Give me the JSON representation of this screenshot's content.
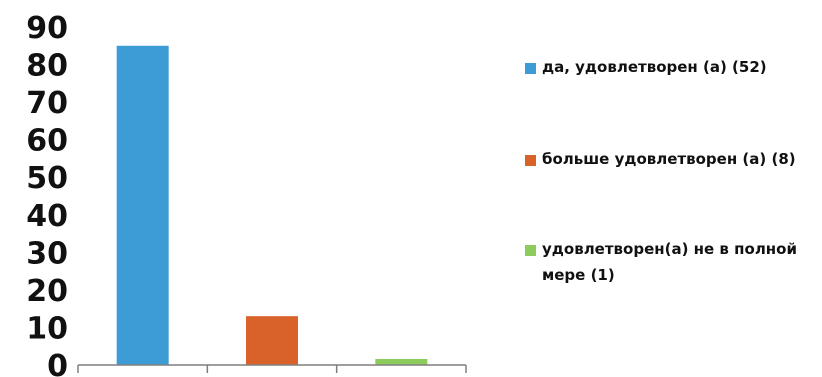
{
  "chart_data": {
    "type": "bar",
    "categories": [
      "да, удовлетворен (а) (52)",
      "больше удовлетворен (а) (8)",
      "удовлетворен(а) не в полной мере (1)"
    ],
    "values": [
      85,
      13,
      1.6
    ],
    "colors": [
      "#3d9bd6",
      "#d9622b",
      "#8ccc5c"
    ],
    "ylim": [
      0,
      90
    ],
    "yticks": [
      "0",
      "10",
      "20",
      "30",
      "40",
      "50",
      "60",
      "70",
      "80",
      "90"
    ],
    "title": "",
    "xlabel": "",
    "ylabel": "",
    "grid": false,
    "legend_position": "right"
  },
  "legend": [
    {
      "label": "да, удовлетворен (а) (52)",
      "color": "#3d9bd6"
    },
    {
      "label": "больше удовлетворен (а) (8)",
      "color": "#d9622b"
    },
    {
      "label": "удовлетворен(а) не в полной мере (1)",
      "color": "#8ccc5c"
    }
  ]
}
